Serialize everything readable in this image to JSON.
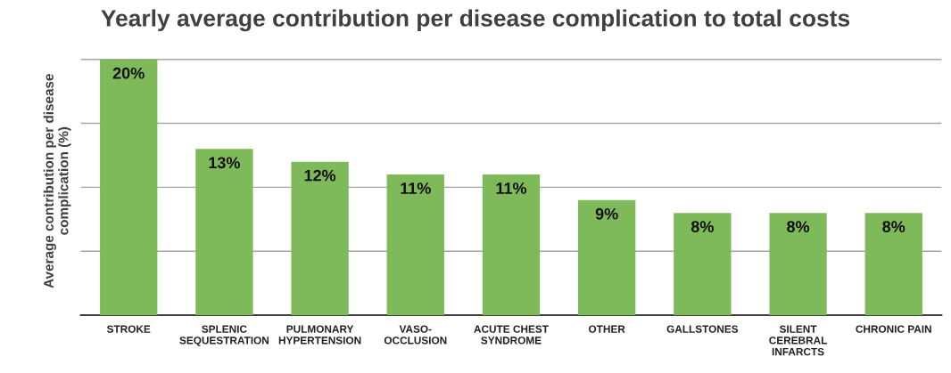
{
  "chart_data": {
    "type": "bar",
    "title": "Yearly average contribution per disease complication to total costs",
    "ylabel": "Average contribution per disease\ncomplication (%)",
    "categories": [
      "STROKE",
      "SPLENIC\nSEQUESTRATION",
      "PULMONARY\nHYPERTENSION",
      "VASO-\nOCCLUSION",
      "ACUTE CHEST\nSYNDROME",
      "OTHER",
      "GALLSTONES",
      "SILENT\nCEREBRAL\nINFARCTS",
      "CHRONIC PAIN"
    ],
    "values": [
      20,
      13,
      12,
      11,
      11,
      9,
      8,
      8,
      8
    ],
    "value_labels": [
      "20%",
      "13%",
      "12%",
      "11%",
      "11%",
      "9%",
      "8%",
      "8%",
      "8%"
    ],
    "color": "#7fba5a",
    "yticks": [
      {
        "value": 0,
        "label": null
      },
      {
        "value": 5,
        "label": null
      },
      {
        "value": 10,
        "label": null
      },
      {
        "value": 15,
        "label": null
      },
      {
        "value": 20,
        "label": null
      }
    ],
    "grid": "y",
    "tick_labels": "x",
    "legend": false
  }
}
